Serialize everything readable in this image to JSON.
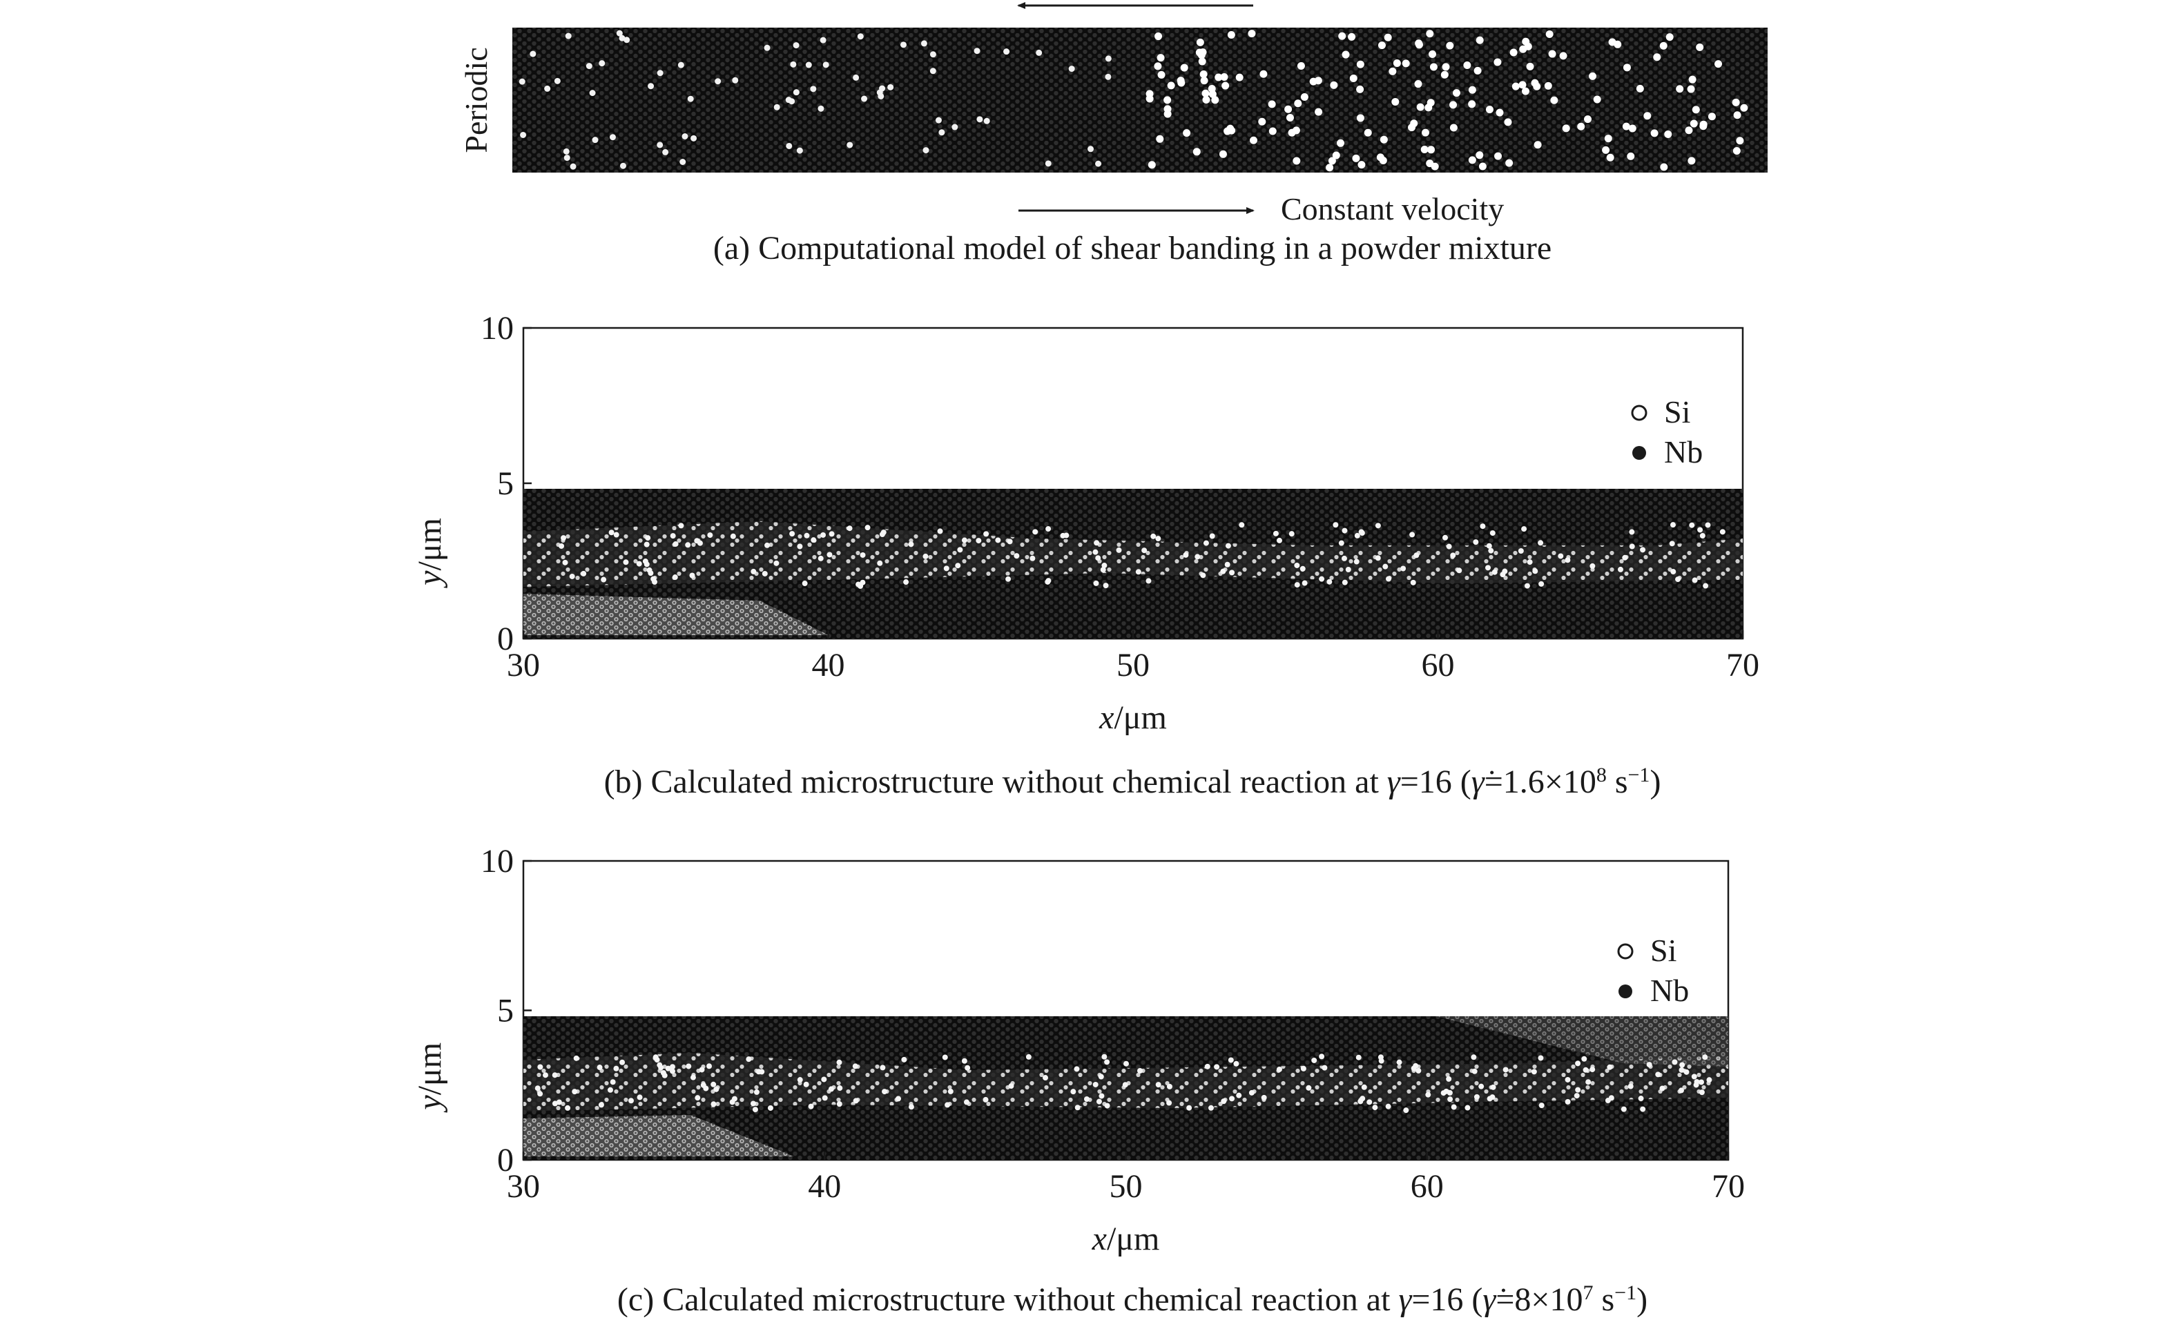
{
  "panel_a": {
    "periodic_label": "Periodic",
    "velocity_label": "Constant velocity",
    "caption": "(a) Computational model of shear banding in a powder mixture",
    "colors": {
      "particle_dark": "#2b2b2b",
      "particle_light": "#ffffff",
      "background": "#111111"
    }
  },
  "panel_b": {
    "caption_prefix": "(b) Calculated microstructure without chemical reaction at ",
    "gamma": "γ",
    "caption_mid": "=16 (",
    "gamma_dot": "γ̇",
    "rate_text": "=1.6×10",
    "rate_exp": "8",
    "unit_text": " s",
    "unit_exp": "−1",
    "caption_end": ")"
  },
  "panel_c": {
    "caption_prefix": "(c) Calculated microstructure without chemical reaction at ",
    "gamma": "γ",
    "caption_mid": "=16 (",
    "gamma_dot": "γ̇",
    "rate_text": "=8×10",
    "rate_exp": "7",
    "unit_text": " s",
    "unit_exp": "−1",
    "caption_end": ")"
  },
  "chart_data": [
    {
      "type": "scatter",
      "panel": "b",
      "x_label_var": "x",
      "y_label_var": "y",
      "unit": "/μm",
      "xlim": [
        30,
        70
      ],
      "ylim": [
        0,
        10
      ],
      "x_ticks": [
        "30",
        "40",
        "50",
        "60",
        "70"
      ],
      "y_ticks": [
        "0",
        "5",
        "10"
      ],
      "legend": [
        {
          "name": "Si",
          "marker": "hollow-circle"
        },
        {
          "name": "Nb",
          "marker": "filled-circle"
        }
      ],
      "legend_position": "top-right",
      "particle_region_y": [
        0,
        4.8
      ]
    },
    {
      "type": "scatter",
      "panel": "c",
      "x_label_var": "x",
      "y_label_var": "y",
      "unit": "/μm",
      "xlim": [
        30,
        70
      ],
      "ylim": [
        0,
        10
      ],
      "x_ticks": [
        "30",
        "40",
        "50",
        "60",
        "70"
      ],
      "y_ticks": [
        "0",
        "5",
        "10"
      ],
      "legend": [
        {
          "name": "Si",
          "marker": "hollow-circle"
        },
        {
          "name": "Nb",
          "marker": "filled-circle"
        }
      ],
      "legend_position": "top-right",
      "particle_region_y": [
        0,
        4.8
      ]
    }
  ]
}
